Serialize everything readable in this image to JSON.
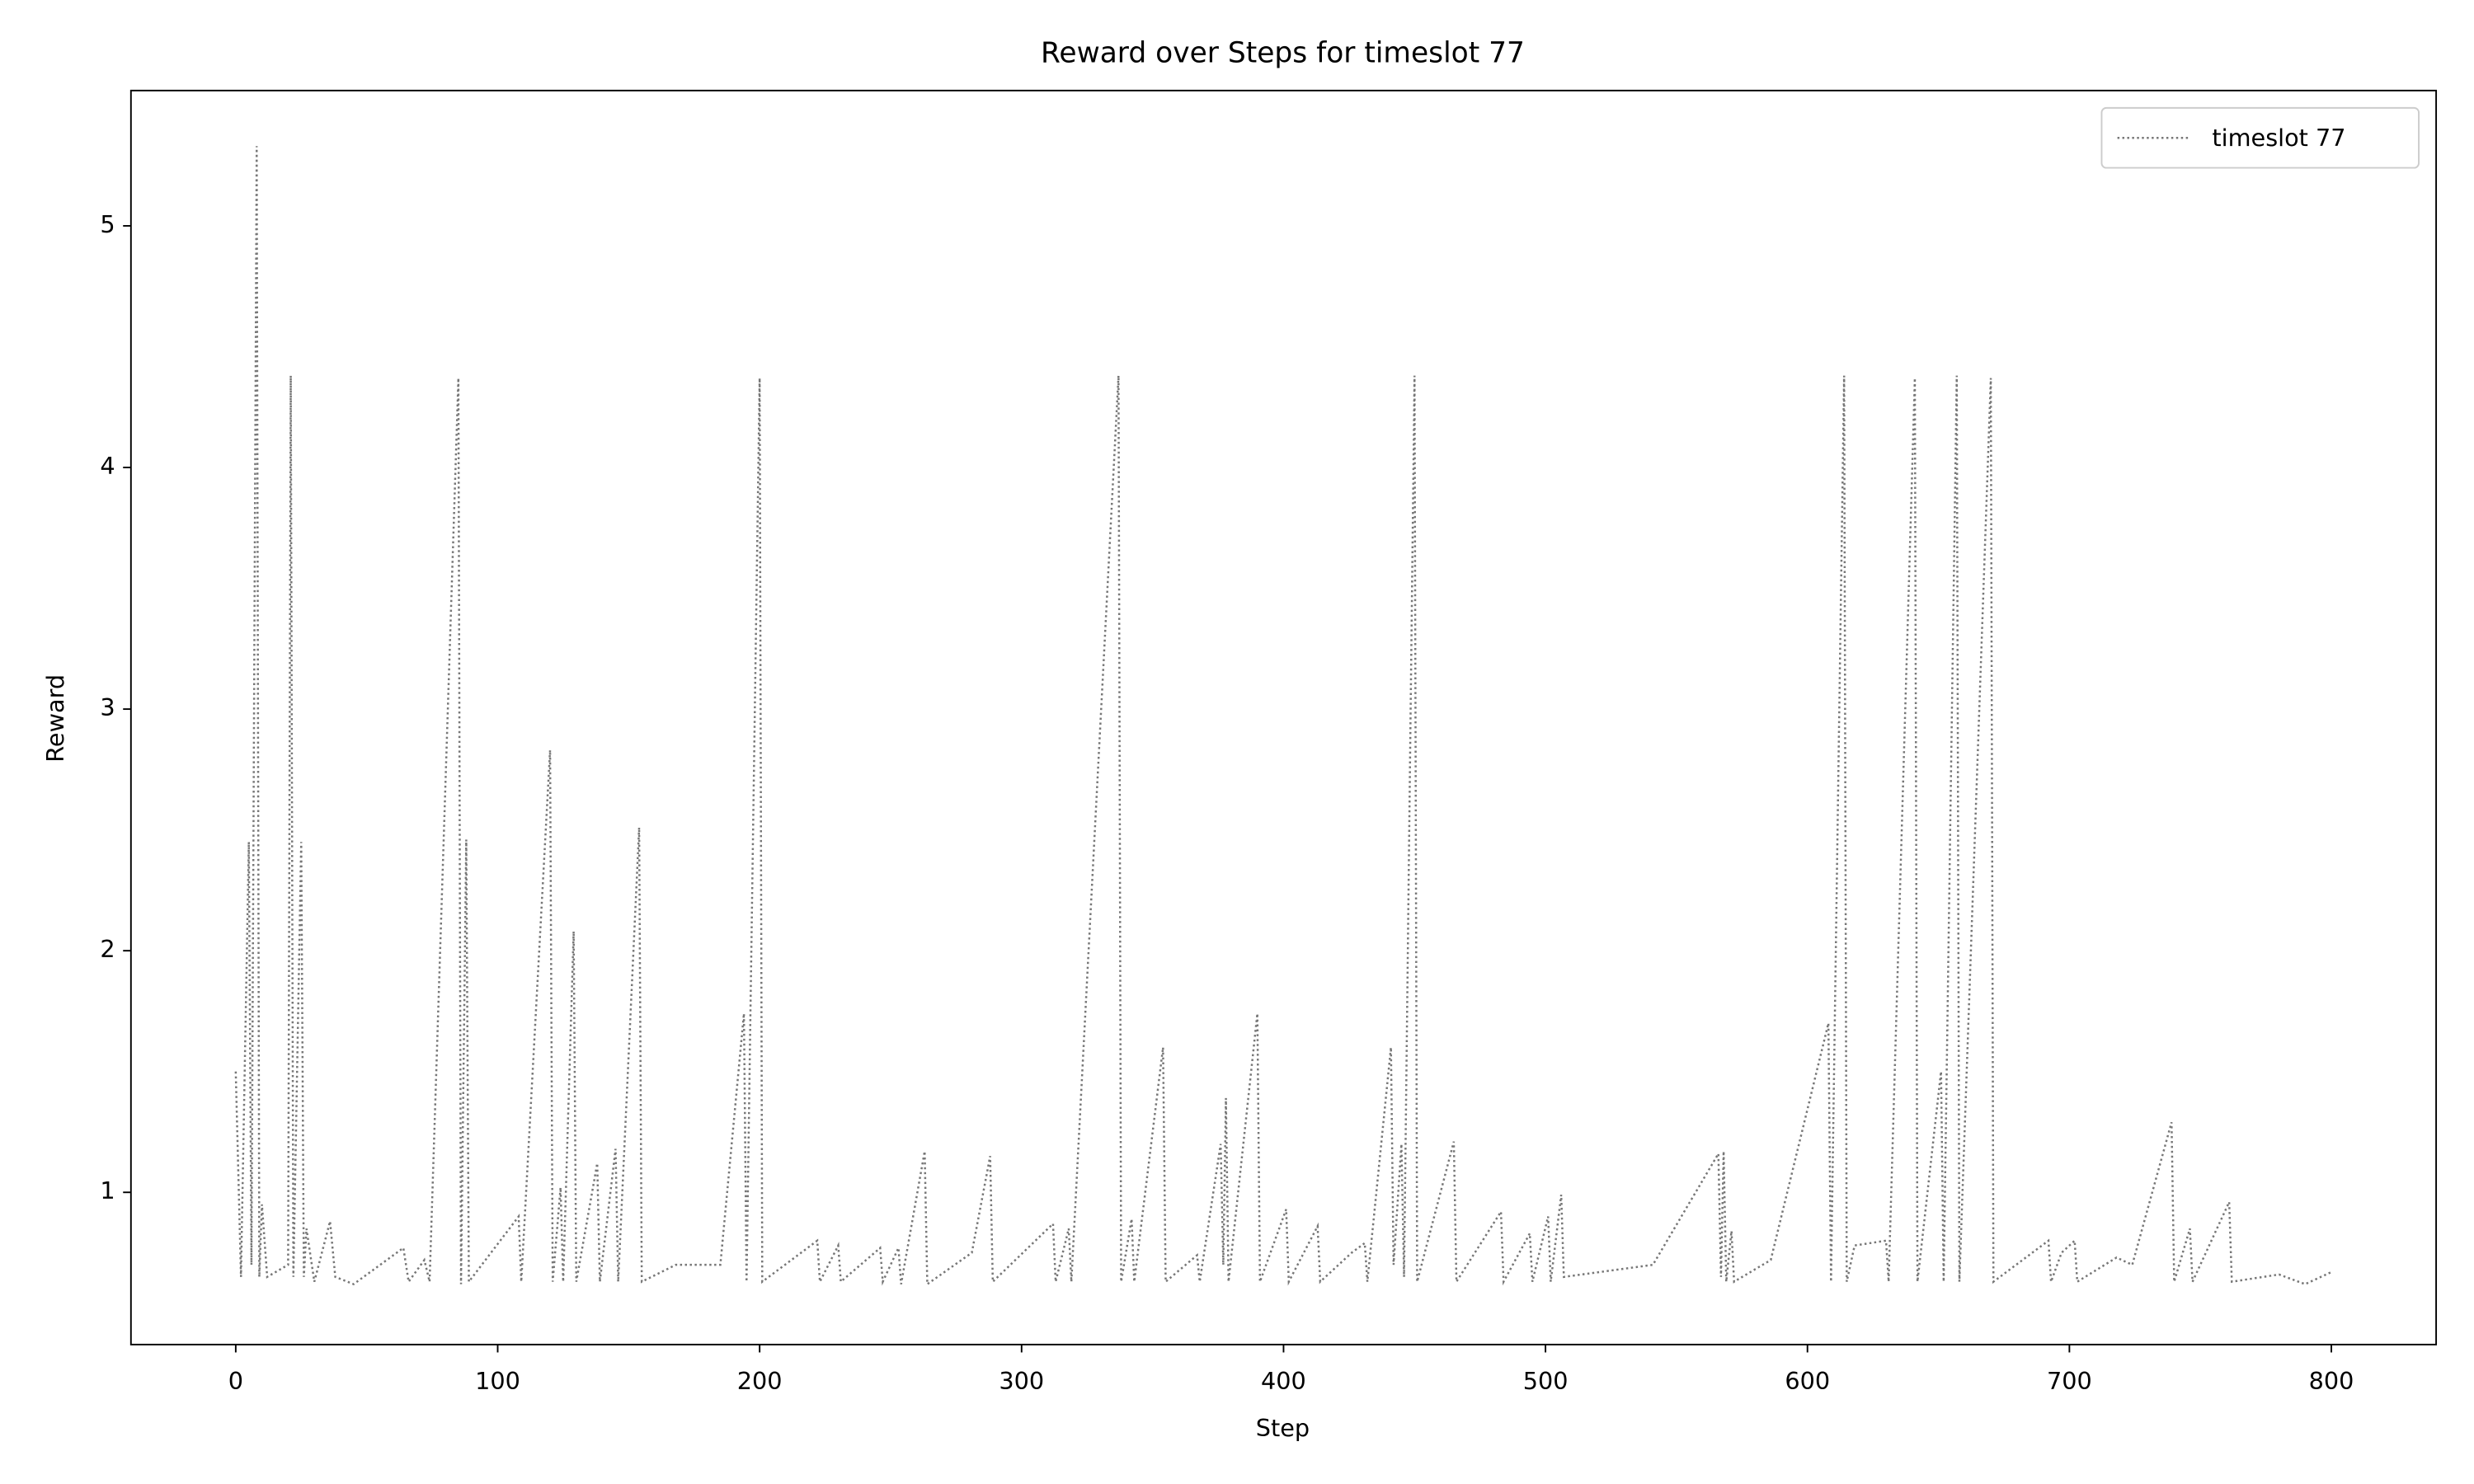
{
  "chart_data": {
    "type": "line",
    "title": "Reward over Steps for timeslot 77",
    "x_label": "Step",
    "y_label": "Reward",
    "x": [
      0,
      2,
      5,
      6,
      8,
      9,
      10,
      12,
      20,
      21,
      22,
      25,
      26,
      27,
      30,
      36,
      38,
      45,
      64,
      66,
      72,
      74,
      85,
      86,
      88,
      89,
      108,
      109,
      120,
      121,
      124,
      125,
      129,
      130,
      138,
      139,
      145,
      146,
      154,
      155,
      168,
      185,
      194,
      195,
      200,
      201,
      222,
      223,
      230,
      231,
      246,
      247,
      253,
      254,
      263,
      264,
      281,
      288,
      289,
      312,
      313,
      318,
      319,
      337,
      338,
      342,
      343,
      354,
      355,
      367,
      368,
      376,
      377,
      378,
      379,
      390,
      391,
      401,
      402,
      413,
      414,
      426,
      431,
      432,
      441,
      442,
      445,
      446,
      450,
      451,
      465,
      466,
      483,
      484,
      494,
      495,
      501,
      502,
      506,
      507,
      541,
      566,
      567,
      568,
      569,
      571,
      572,
      586,
      608,
      609,
      614,
      615,
      618,
      630,
      631,
      641,
      642,
      651,
      652,
      657,
      658,
      670,
      671,
      692,
      693,
      697,
      702,
      703,
      718,
      724,
      739,
      740,
      746,
      747,
      761,
      762,
      780,
      790,
      800
    ],
    "series": [
      {
        "name": "timeslot 77",
        "color": "#777777",
        "values": [
          1.5,
          0.65,
          2.45,
          0.7,
          5.33,
          0.65,
          0.95,
          0.65,
          0.7,
          4.38,
          0.65,
          2.45,
          0.65,
          0.85,
          0.63,
          0.88,
          0.65,
          0.62,
          0.77,
          0.63,
          0.72,
          0.63,
          4.37,
          0.62,
          2.46,
          0.63,
          0.9,
          0.63,
          2.83,
          0.63,
          1.02,
          0.63,
          2.08,
          0.63,
          1.12,
          0.63,
          1.18,
          0.63,
          2.51,
          0.63,
          0.7,
          0.7,
          1.74,
          0.63,
          4.37,
          0.63,
          0.8,
          0.63,
          0.78,
          0.63,
          0.77,
          0.63,
          0.77,
          0.62,
          1.17,
          0.62,
          0.75,
          1.15,
          0.63,
          0.87,
          0.63,
          0.85,
          0.63,
          4.38,
          0.63,
          0.89,
          0.63,
          1.6,
          0.63,
          0.74,
          0.63,
          1.2,
          0.7,
          1.39,
          0.63,
          1.74,
          0.63,
          0.93,
          0.63,
          0.86,
          0.63,
          0.75,
          0.79,
          0.63,
          1.6,
          0.7,
          1.2,
          0.65,
          4.38,
          0.63,
          1.21,
          0.63,
          0.92,
          0.63,
          0.83,
          0.63,
          0.9,
          0.63,
          0.99,
          0.65,
          0.7,
          1.16,
          0.65,
          1.17,
          0.63,
          0.84,
          0.63,
          0.72,
          1.7,
          0.63,
          4.38,
          0.63,
          0.78,
          0.8,
          0.63,
          4.37,
          0.63,
          1.5,
          0.63,
          4.38,
          0.63,
          4.37,
          0.63,
          0.8,
          0.63,
          0.75,
          0.8,
          0.63,
          0.73,
          0.7,
          1.29,
          0.63,
          0.85,
          0.63,
          0.96,
          0.63,
          0.66,
          0.62,
          0.67
        ]
      }
    ],
    "xlim": [
      -40,
      840
    ],
    "ylim": [
      0.37,
      5.56
    ],
    "xticks": [
      0,
      100,
      200,
      300,
      400,
      500,
      600,
      700,
      800
    ],
    "yticks": [
      1,
      2,
      3,
      4,
      5
    ],
    "legend": "upper right"
  }
}
